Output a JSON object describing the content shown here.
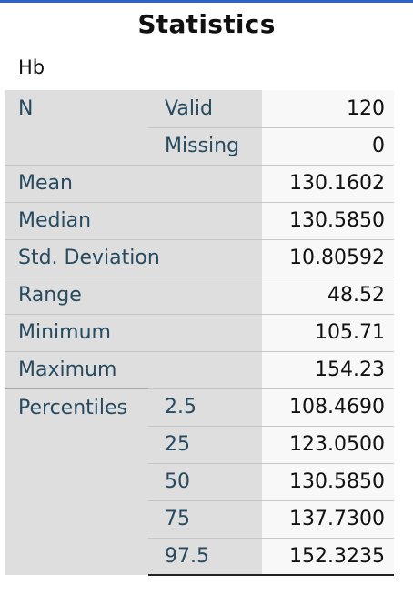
{
  "title": "Statistics",
  "variable": "Hb",
  "rows": {
    "n": {
      "label": "N",
      "valid_label": "Valid",
      "valid": "120",
      "missing_label": "Missing",
      "missing": "0"
    },
    "mean": {
      "label": "Mean",
      "value": "130.1602"
    },
    "median": {
      "label": "Median",
      "value": "130.5850"
    },
    "std_deviation": {
      "label": "Std. Deviation",
      "value": "10.80592"
    },
    "range": {
      "label": "Range",
      "value": "48.52"
    },
    "minimum": {
      "label": "Minimum",
      "value": "105.71"
    },
    "maximum": {
      "label": "Maximum",
      "value": "154.23"
    },
    "percentiles": {
      "label": "Percentiles",
      "items": [
        {
          "p": "2.5",
          "value": "108.4690"
        },
        {
          "p": "25",
          "value": "123.0500"
        },
        {
          "p": "50",
          "value": "130.5850"
        },
        {
          "p": "75",
          "value": "137.7300"
        },
        {
          "p": "97.5",
          "value": "152.3235"
        }
      ]
    }
  }
}
